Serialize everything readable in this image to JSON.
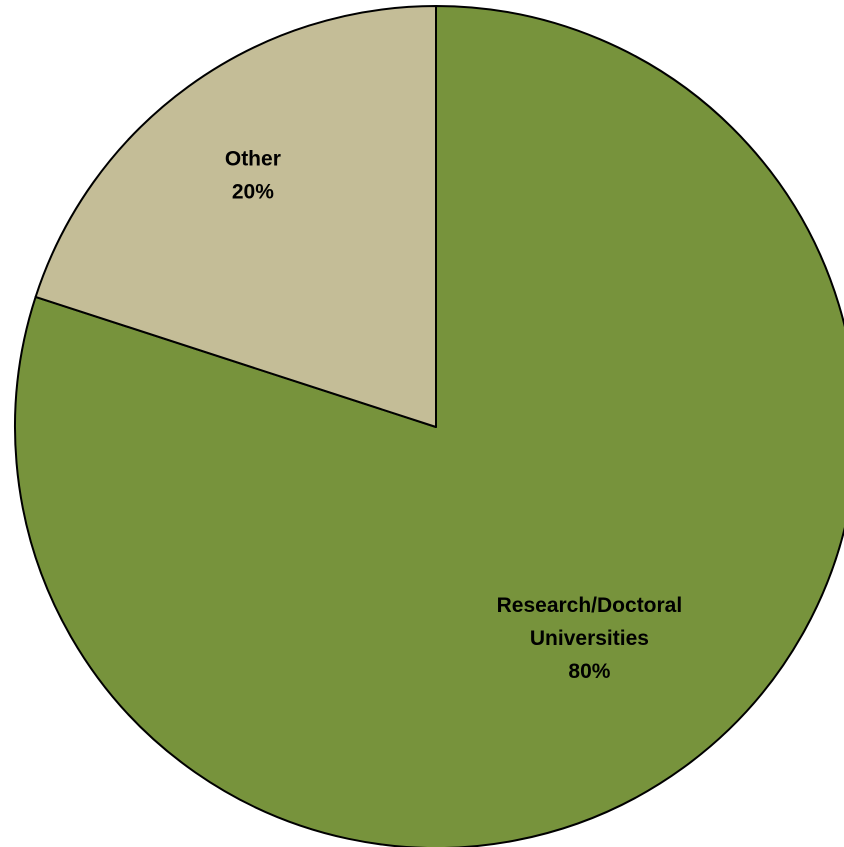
{
  "chart_data": {
    "type": "pie",
    "start_angle_deg": 0,
    "direction": "clockwise",
    "border_color": "#000000",
    "slices": [
      {
        "label_lines": [
          "Research/Doctoral",
          "Universities"
        ],
        "percent_label": "80%",
        "value": 80,
        "color": "#77933C"
      },
      {
        "label_lines": [
          "Other"
        ],
        "percent_label": "20%",
        "value": 20,
        "color": "#C4BD97"
      }
    ]
  }
}
